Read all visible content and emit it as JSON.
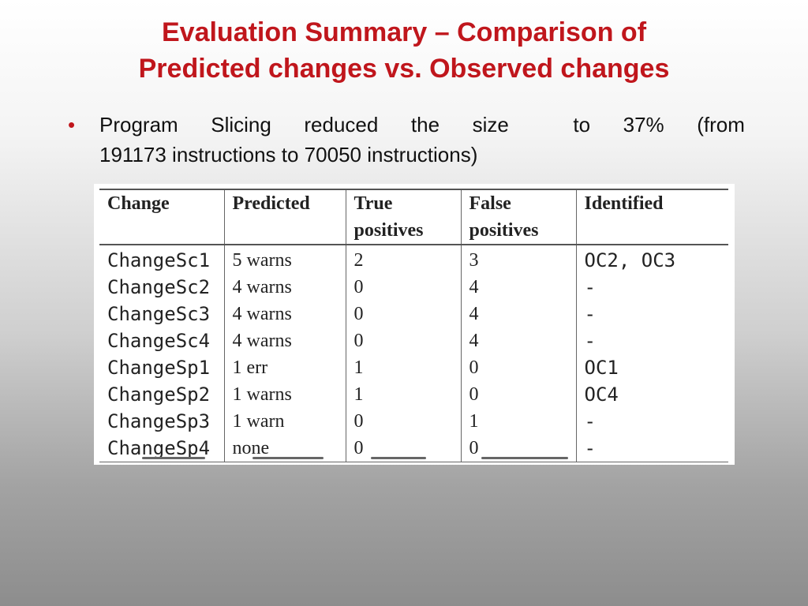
{
  "slide": {
    "title_line1": "Evaluation Summary – Comparison of",
    "title_line2": "Predicted changes vs. Observed changes",
    "bullet": {
      "marker": "•",
      "words_line1": [
        "Program",
        "Slicing",
        "reduced",
        "the",
        "size",
        "to",
        "37%",
        "(from"
      ],
      "line2": "191173 instructions to 70050 instructions)"
    }
  },
  "table": {
    "headers": [
      "Change",
      "Predicted",
      "True positives",
      "False positives",
      "Identified"
    ],
    "rows": [
      [
        "ChangeSc1",
        "5 warns",
        "2",
        "3",
        "OC2, OC3"
      ],
      [
        "ChangeSc2",
        "4 warns",
        "0",
        "4",
        "-"
      ],
      [
        "ChangeSc3",
        "4 warns",
        "0",
        "4",
        "-"
      ],
      [
        "ChangeSc4",
        "4 warns",
        "0",
        "4",
        "-"
      ],
      [
        "ChangeSp1",
        "1 err",
        "1",
        "0",
        "OC1"
      ],
      [
        "ChangeSp2",
        "1 warns",
        "1",
        "0",
        "OC4"
      ],
      [
        "ChangeSp3",
        "1 warn",
        "0",
        "1",
        "-"
      ],
      [
        "ChangeSp4",
        "none",
        "0",
        "0",
        "-"
      ]
    ]
  },
  "colors": {
    "title": "#c0161c",
    "bullet_marker": "#c0161c",
    "text": "#111111"
  }
}
